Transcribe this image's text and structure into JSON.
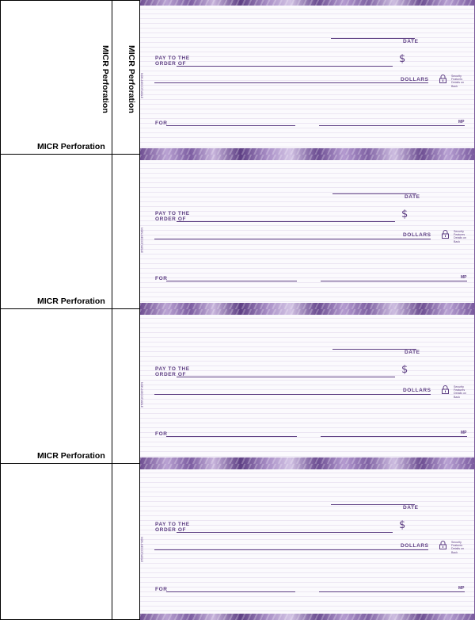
{
  "micr_label": "MICR Perforation",
  "check": {
    "pay_to_line1": "Pay to the",
    "pay_to_line2": "Order of",
    "date_label": "Date",
    "dollars_label": "Dollars",
    "for_label": "For",
    "dollar_sign": "$",
    "mp_mark": "MP",
    "security_note": "Security\nFeatures\nDetails on\nBack",
    "side_text": "NON-NEGOTIABLE"
  },
  "colors": {
    "ink": "#5c3d82",
    "band": "#7c5da1"
  },
  "checks_count_label": [
    "check-1",
    "check-2",
    "check-3",
    "check-4"
  ]
}
